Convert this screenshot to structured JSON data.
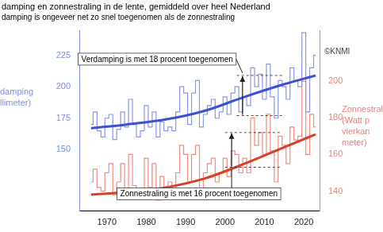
{
  "chart_data": {
    "type": "line",
    "title": "damping en zonnestraling in de lente, gemiddeld over heel Nederland",
    "subtitle": "damping is ongeveer net zo snel toegenomen als de zonnestraling",
    "y_label": [
      "damping",
      "llimeter)"
    ],
    "y2_label": [
      "Zonnestral",
      "(Watt p",
      "vierkan",
      "meter)"
    ],
    "credit": "©KNMI",
    "xlim": [
      1963,
      2024
    ],
    "xticks": [
      1970,
      1980,
      1990,
      2000,
      2010,
      2020
    ],
    "ylim": [
      101,
      245
    ],
    "yticks": [
      150,
      175,
      200,
      225
    ],
    "y2lim": [
      129,
      228
    ],
    "y2ticks": [
      140,
      160,
      180,
      200
    ],
    "grid": false,
    "legend": false,
    "x": [
      1966,
      1967,
      1968,
      1969,
      1970,
      1971,
      1972,
      1973,
      1974,
      1975,
      1976,
      1977,
      1978,
      1979,
      1980,
      1981,
      1982,
      1983,
      1984,
      1985,
      1986,
      1987,
      1988,
      1989,
      1990,
      1991,
      1992,
      1993,
      1994,
      1995,
      1996,
      1997,
      1998,
      1999,
      2000,
      2001,
      2002,
      2003,
      2004,
      2005,
      2006,
      2007,
      2008,
      2009,
      2010,
      2011,
      2012,
      2013,
      2014,
      2015,
      2016,
      2017,
      2018,
      2019,
      2020,
      2021,
      2022,
      2023
    ],
    "series": [
      {
        "color": "#8c96ea",
        "axis": "y",
        "line_style": "step",
        "values": [
          170,
          180,
          165,
          160,
          175,
          178,
          158,
          166,
          180,
          168,
          190,
          170,
          160,
          165,
          185,
          168,
          180,
          160,
          172,
          165,
          168,
          165,
          180,
          200,
          195,
          170,
          195,
          205,
          168,
          178,
          185,
          190,
          175,
          180,
          192,
          178,
          195,
          200,
          180,
          192,
          185,
          215,
          200,
          210,
          190,
          218,
          192,
          175,
          205,
          200,
          190,
          215,
          205,
          200,
          243,
          180,
          215,
          225
        ]
      },
      {
        "color": "#f28b80",
        "axis": "y2",
        "line_style": "step",
        "values": [
          145,
          152,
          142,
          140,
          150,
          155,
          138,
          145,
          155,
          140,
          160,
          143,
          138,
          140,
          158,
          142,
          155,
          135,
          148,
          140,
          145,
          140,
          150,
          165,
          160,
          145,
          160,
          165,
          140,
          150,
          155,
          158,
          145,
          150,
          158,
          148,
          162,
          160,
          150,
          158,
          150,
          180,
          165,
          172,
          160,
          182,
          162,
          145,
          170,
          165,
          155,
          175,
          168,
          170,
          200,
          160,
          182,
          175
        ]
      },
      {
        "color": "#3b4fd8",
        "axis": "y",
        "line_style": "solid",
        "x": [
          1966,
          1975,
          1985,
          1995,
          2005,
          2015,
          2023
        ],
        "values": [
          167,
          170,
          174,
          181,
          192,
          202,
          209
        ]
      },
      {
        "color": "#d8402a",
        "axis": "y2",
        "line_style": "solid",
        "x": [
          1966,
          1975,
          1985,
          1995,
          2005,
          2015,
          2023
        ],
        "values": [
          138,
          139.5,
          142,
          147,
          155,
          164,
          171
        ]
      }
    ],
    "annotations": [
      {
        "text": "Verdamping is met 18 procent toegenomen",
        "axis": "y",
        "x": [
          2003,
          2015
        ],
        "levels": [
          177,
          209
        ]
      },
      {
        "text": "Zonnestraling is met 16 procent toegenomen",
        "axis": "y2",
        "x": [
          2000,
          2014
        ],
        "levels": [
          153,
          172
        ]
      }
    ]
  }
}
